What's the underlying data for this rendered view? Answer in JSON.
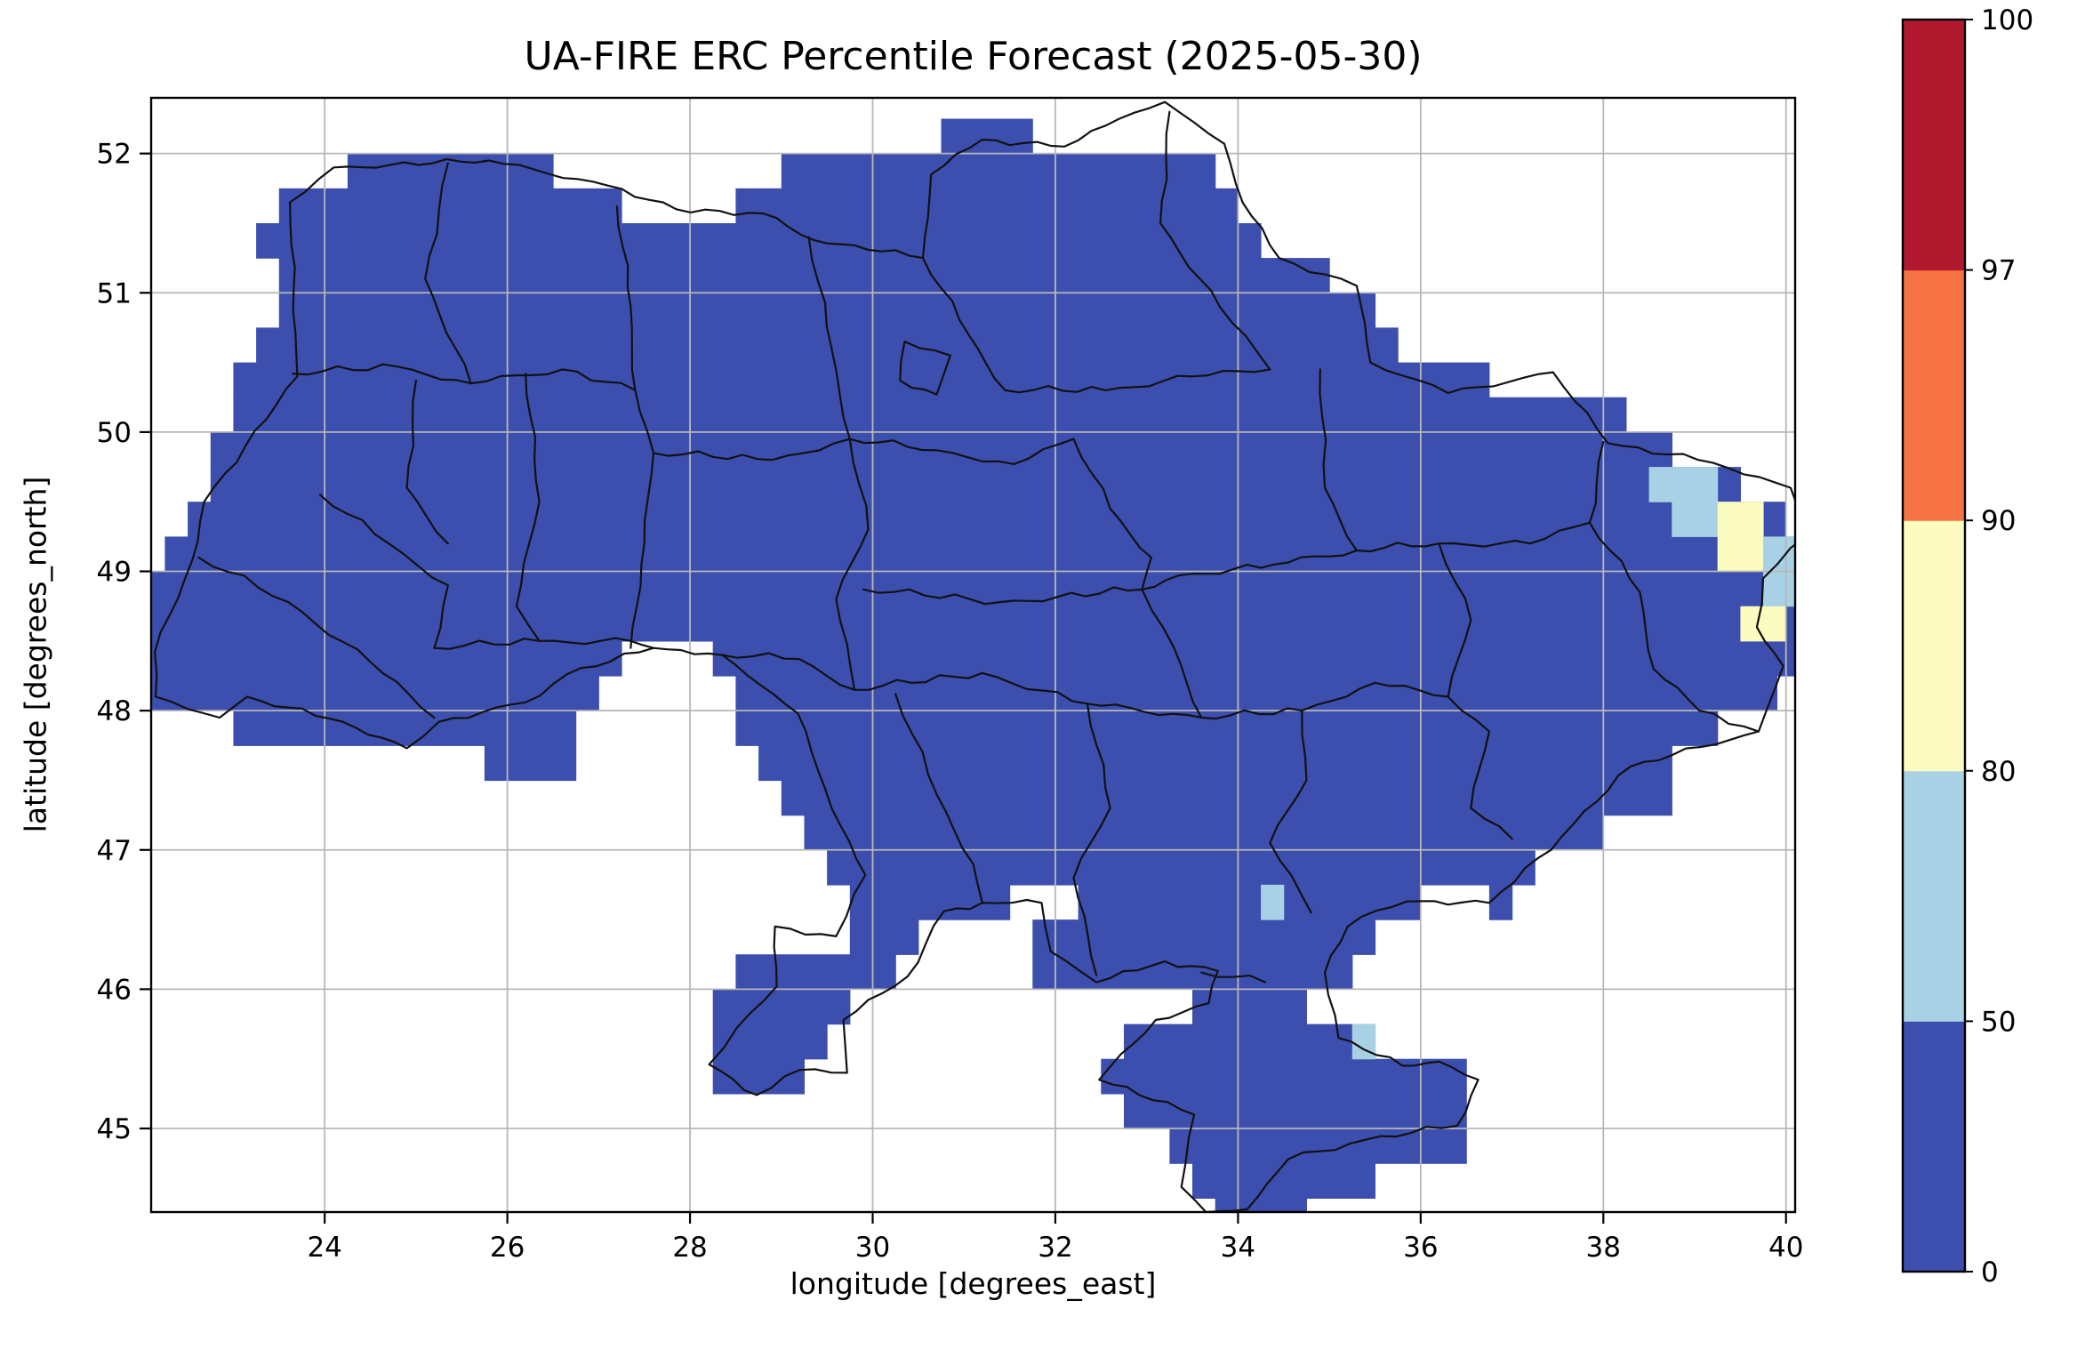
{
  "chart_data": {
    "type": "heatmap",
    "title": "UA-FIRE ERC Percentile Forecast (2025-05-30)",
    "xlabel": "longitude [degrees_east]",
    "ylabel": "latitude [degrees_north]",
    "xlim": [
      22.1,
      40.1
    ],
    "ylim": [
      44.4,
      52.4
    ],
    "xticks": [
      24,
      26,
      28,
      30,
      32,
      34,
      36,
      38,
      40
    ],
    "yticks": [
      45,
      46,
      47,
      48,
      49,
      50,
      51,
      52
    ],
    "grid": true,
    "grid_color": "#b8b8b8",
    "background_color": "#ffffff",
    "boundary_color": "#111111",
    "cell_size_deg": 0.25,
    "base_value": 25,
    "colorbar": {
      "bounds": [
        0,
        50,
        80,
        90,
        97,
        100
      ],
      "colors": [
        "#3C4FAE",
        "#A8D1E5",
        "#FCFBC0",
        "#F57245",
        "#B0182D"
      ],
      "tick_labels": [
        "0",
        "50",
        "80",
        "90",
        "97",
        "100"
      ]
    },
    "coverage_rows": [
      {
        "top": 52.25,
        "spans": [
          [
            30.75,
            31.75
          ]
        ]
      },
      {
        "top": 52.0,
        "spans": [
          [
            24.25,
            26.5
          ],
          [
            29.0,
            33.75
          ]
        ]
      },
      {
        "top": 51.75,
        "spans": [
          [
            23.5,
            27.25
          ],
          [
            28.5,
            34.0
          ]
        ]
      },
      {
        "top": 51.5,
        "spans": [
          [
            23.25,
            34.25
          ]
        ]
      },
      {
        "top": 51.25,
        "spans": [
          [
            23.5,
            35.0
          ]
        ]
      },
      {
        "top": 51.0,
        "spans": [
          [
            23.5,
            35.5
          ]
        ]
      },
      {
        "top": 50.75,
        "spans": [
          [
            23.25,
            35.75
          ]
        ]
      },
      {
        "top": 50.5,
        "spans": [
          [
            23.0,
            36.75
          ]
        ]
      },
      {
        "top": 50.25,
        "spans": [
          [
            23.0,
            38.25
          ]
        ]
      },
      {
        "top": 50.0,
        "spans": [
          [
            22.75,
            38.75
          ]
        ]
      },
      {
        "top": 49.75,
        "spans": [
          [
            22.75,
            39.5
          ]
        ]
      },
      {
        "top": 49.5,
        "spans": [
          [
            22.5,
            40.0
          ]
        ]
      },
      {
        "top": 49.25,
        "spans": [
          [
            22.25,
            40.25
          ]
        ]
      },
      {
        "top": 49.0,
        "spans": [
          [
            22.1,
            40.25
          ]
        ]
      },
      {
        "top": 48.75,
        "spans": [
          [
            22.1,
            40.25
          ]
        ]
      },
      {
        "top": 48.5,
        "spans": [
          [
            22.1,
            27.25
          ],
          [
            28.25,
            40.1
          ]
        ]
      },
      {
        "top": 48.25,
        "spans": [
          [
            22.1,
            27.0
          ],
          [
            28.5,
            39.9
          ]
        ]
      },
      {
        "top": 48.0,
        "spans": [
          [
            23.0,
            26.75
          ],
          [
            28.5,
            39.25
          ]
        ]
      },
      {
        "top": 47.75,
        "spans": [
          [
            25.75,
            26.75
          ],
          [
            28.75,
            38.75
          ]
        ]
      },
      {
        "top": 47.5,
        "spans": [
          [
            29.0,
            38.75
          ]
        ]
      },
      {
        "top": 47.25,
        "spans": [
          [
            29.25,
            38.0
          ]
        ]
      },
      {
        "top": 47.0,
        "spans": [
          [
            29.5,
            37.25
          ]
        ]
      },
      {
        "top": 46.75,
        "spans": [
          [
            29.75,
            31.5
          ],
          [
            32.25,
            36.0
          ],
          [
            36.75,
            37.0
          ]
        ]
      },
      {
        "top": 46.5,
        "spans": [
          [
            29.75,
            30.5
          ],
          [
            31.75,
            35.5
          ]
        ]
      },
      {
        "top": 46.25,
        "spans": [
          [
            28.5,
            30.25
          ],
          [
            31.75,
            35.25
          ]
        ]
      },
      {
        "top": 46.0,
        "spans": [
          [
            28.25,
            29.75
          ],
          [
            33.5,
            34.75
          ]
        ]
      },
      {
        "top": 45.75,
        "spans": [
          [
            28.25,
            29.5
          ],
          [
            32.75,
            35.5
          ]
        ]
      },
      {
        "top": 45.5,
        "spans": [
          [
            28.25,
            29.25
          ],
          [
            32.5,
            36.5
          ]
        ]
      },
      {
        "top": 45.25,
        "spans": [
          [
            32.75,
            36.5
          ]
        ]
      },
      {
        "top": 45.0,
        "spans": [
          [
            33.25,
            36.5
          ]
        ]
      },
      {
        "top": 44.75,
        "spans": [
          [
            33.5,
            35.5
          ]
        ]
      },
      {
        "top": 44.5,
        "spans": [
          [
            33.75,
            34.75
          ]
        ]
      }
    ],
    "anomaly_cells": [
      {
        "lon": 38.5,
        "lat": 49.5,
        "value": 65
      },
      {
        "lon": 38.75,
        "lat": 49.5,
        "value": 65
      },
      {
        "lon": 39.0,
        "lat": 49.5,
        "value": 65
      },
      {
        "lon": 38.75,
        "lat": 49.25,
        "value": 65
      },
      {
        "lon": 39.0,
        "lat": 49.25,
        "value": 65
      },
      {
        "lon": 39.25,
        "lat": 49.25,
        "value": 85
      },
      {
        "lon": 39.5,
        "lat": 49.25,
        "value": 85
      },
      {
        "lon": 39.25,
        "lat": 49.0,
        "value": 85
      },
      {
        "lon": 39.5,
        "lat": 49.0,
        "value": 85
      },
      {
        "lon": 39.75,
        "lat": 49.0,
        "value": 65
      },
      {
        "lon": 40.0,
        "lat": 49.0,
        "value": 65
      },
      {
        "lon": 39.75,
        "lat": 48.75,
        "value": 65
      },
      {
        "lon": 40.0,
        "lat": 48.75,
        "value": 65
      },
      {
        "lon": 39.5,
        "lat": 48.5,
        "value": 85
      },
      {
        "lon": 39.75,
        "lat": 48.5,
        "value": 85
      },
      {
        "lon": 34.25,
        "lat": 46.5,
        "value": 65
      },
      {
        "lon": 35.25,
        "lat": 45.5,
        "value": 65
      }
    ]
  }
}
